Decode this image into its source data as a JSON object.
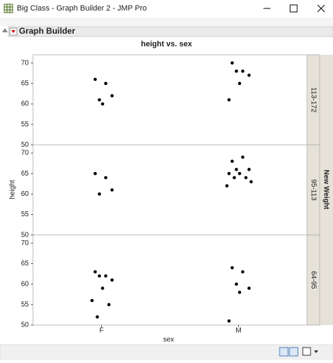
{
  "window": {
    "title": "Big Class - Graph Builder 2 - JMP Pro",
    "outline_title": "Graph Builder"
  },
  "chart_data": {
    "type": "strip",
    "title": "height vs. sex",
    "x_label": "sex",
    "y_label": "height",
    "facet_label": "New Weight",
    "categories": [
      "F",
      "M"
    ],
    "ylim": [
      50,
      72
    ],
    "yticks": [
      50,
      55,
      60,
      65,
      70
    ],
    "grid": false,
    "color": "#000000",
    "panels": [
      {
        "label": "113-172",
        "values": [
          [
            66,
            65,
            61,
            62,
            60
          ],
          [
            70,
            68,
            68,
            67,
            65,
            61
          ]
        ]
      },
      {
        "label": "95-113",
        "values": [
          [
            65,
            64,
            60,
            61
          ],
          [
            68,
            69,
            66,
            66,
            65,
            65,
            64,
            64,
            63,
            62
          ]
        ]
      },
      {
        "label": "64-95",
        "values": [
          [
            63,
            62,
            62,
            61,
            59,
            56,
            55,
            52
          ],
          [
            64,
            63,
            60,
            59,
            58,
            51
          ]
        ]
      }
    ]
  }
}
